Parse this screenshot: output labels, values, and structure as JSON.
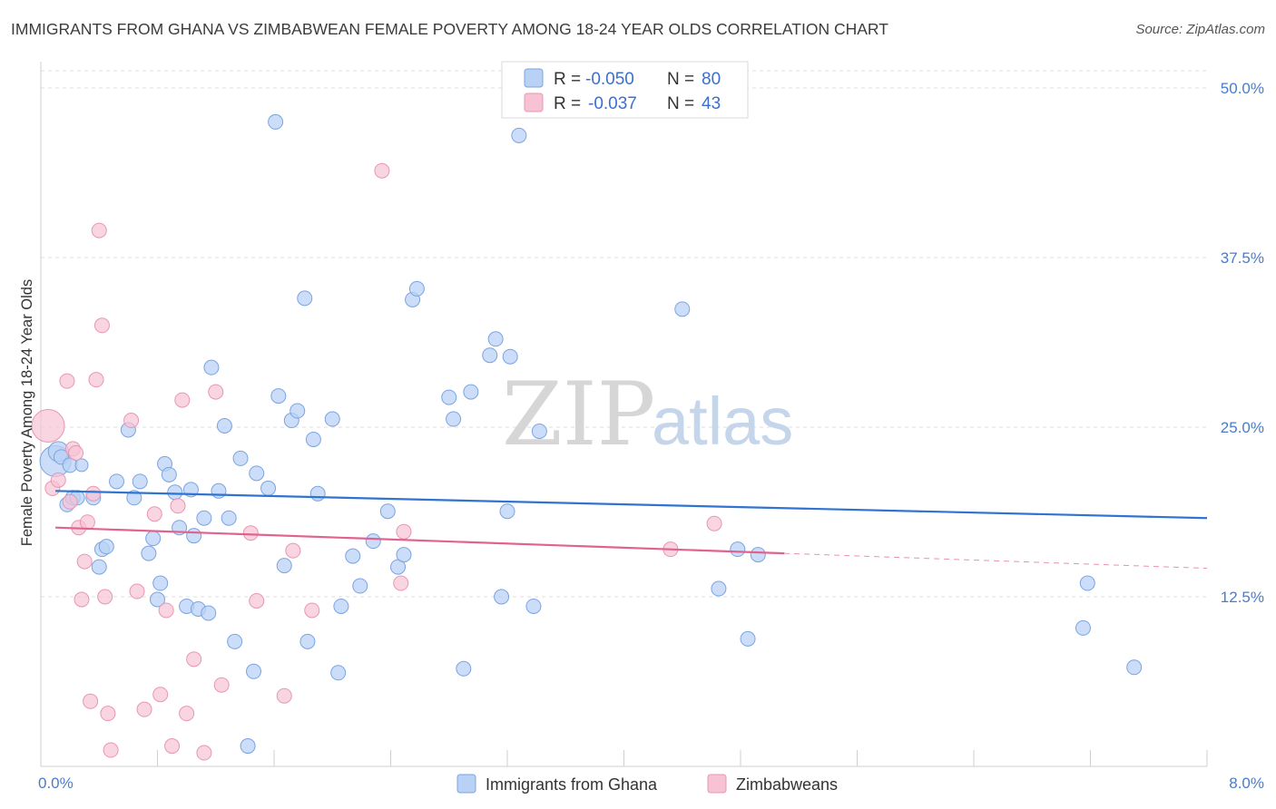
{
  "title": "IMMIGRANTS FROM GHANA VS ZIMBABWEAN FEMALE POVERTY AMONG 18-24 YEAR OLDS CORRELATION CHART",
  "source": "Source: ZipAtlas.com",
  "watermark": {
    "zip": "ZIP",
    "atlas": "atlas"
  },
  "colors": {
    "ghana_fill": "#b9d1f5",
    "ghana_stroke": "#7aa4e0",
    "ghana_line": "#2f74d0",
    "zim_fill": "#f7c3d4",
    "zim_stroke": "#e996b3",
    "zim_line": "#e0628f",
    "grid": "#dcdcdc",
    "tick_label": "#4a7ccc"
  },
  "legend": {
    "rows": [
      {
        "r_label": "R =",
        "r_value": "-0.050",
        "n_label": "N =",
        "n_value": "80"
      },
      {
        "r_label": "R =",
        "r_value": "-0.037",
        "n_label": "N =",
        "n_value": "43"
      }
    ]
  },
  "bottom_legend": [
    "Immigrants from Ghana",
    "Zimbabweans"
  ],
  "chart_data": {
    "type": "scatter",
    "title": "IMMIGRANTS FROM GHANA VS ZIMBABWEAN FEMALE POVERTY AMONG 18-24 YEAR OLDS CORRELATION CHART",
    "xlabel": "",
    "ylabel": "Female Poverty Among 18-24 Year Olds",
    "xlim": [
      0,
      8
    ],
    "ylim": [
      0,
      51
    ],
    "x_tick_labels": [
      {
        "value": 0,
        "label": "0.0%"
      },
      {
        "value": 8,
        "label": "8.0%"
      }
    ],
    "y_ticks": [
      {
        "value": 12.5,
        "label": "12.5%"
      },
      {
        "value": 25,
        "label": "25.0%"
      },
      {
        "value": 37.5,
        "label": "37.5%"
      },
      {
        "value": 50,
        "label": "50.0%"
      }
    ],
    "series": [
      {
        "name": "Immigrants from Ghana",
        "r": -0.05,
        "n": 80,
        "trend": {
          "x0": 0.1,
          "y0": 20.3,
          "x1": 8.0,
          "y1": 18.3,
          "dash_after": null
        },
        "points": [
          [
            0.1,
            22.5
          ],
          [
            0.12,
            23.2
          ],
          [
            0.14,
            22.8
          ],
          [
            0.18,
            19.3
          ],
          [
            0.2,
            22.2
          ],
          [
            0.22,
            19.8
          ],
          [
            0.25,
            19.8
          ],
          [
            0.28,
            22.2
          ],
          [
            0.36,
            19.8
          ],
          [
            0.4,
            14.7
          ],
          [
            0.42,
            16.0
          ],
          [
            0.45,
            16.2
          ],
          [
            0.52,
            21.0
          ],
          [
            0.6,
            24.8
          ],
          [
            0.64,
            19.8
          ],
          [
            0.68,
            21.0
          ],
          [
            0.74,
            15.7
          ],
          [
            0.77,
            16.8
          ],
          [
            0.8,
            12.3
          ],
          [
            0.82,
            13.5
          ],
          [
            0.85,
            22.3
          ],
          [
            0.88,
            21.5
          ],
          [
            0.92,
            20.2
          ],
          [
            0.95,
            17.6
          ],
          [
            1.0,
            11.8
          ],
          [
            1.03,
            20.4
          ],
          [
            1.05,
            17.0
          ],
          [
            1.08,
            11.6
          ],
          [
            1.12,
            18.3
          ],
          [
            1.15,
            11.3
          ],
          [
            1.17,
            29.4
          ],
          [
            1.22,
            20.3
          ],
          [
            1.26,
            25.1
          ],
          [
            1.29,
            18.3
          ],
          [
            1.33,
            9.2
          ],
          [
            1.37,
            22.7
          ],
          [
            1.42,
            1.5
          ],
          [
            1.46,
            7.0
          ],
          [
            1.48,
            21.6
          ],
          [
            1.56,
            20.5
          ],
          [
            1.61,
            47.5
          ],
          [
            1.63,
            27.3
          ],
          [
            1.67,
            14.8
          ],
          [
            1.72,
            25.5
          ],
          [
            1.76,
            26.2
          ],
          [
            1.81,
            34.5
          ],
          [
            1.83,
            9.2
          ],
          [
            1.87,
            24.1
          ],
          [
            1.9,
            20.1
          ],
          [
            2.0,
            25.6
          ],
          [
            2.04,
            6.9
          ],
          [
            2.06,
            11.8
          ],
          [
            2.14,
            15.5
          ],
          [
            2.19,
            13.3
          ],
          [
            2.28,
            16.6
          ],
          [
            2.38,
            18.8
          ],
          [
            2.45,
            14.7
          ],
          [
            2.49,
            15.6
          ],
          [
            2.55,
            34.4
          ],
          [
            2.58,
            35.2
          ],
          [
            2.8,
            27.2
          ],
          [
            2.83,
            25.6
          ],
          [
            2.9,
            7.2
          ],
          [
            2.95,
            27.6
          ],
          [
            3.08,
            30.3
          ],
          [
            3.12,
            31.5
          ],
          [
            3.16,
            12.5
          ],
          [
            3.2,
            18.8
          ],
          [
            3.22,
            30.2
          ],
          [
            3.28,
            46.5
          ],
          [
            3.38,
            11.8
          ],
          [
            3.42,
            24.7
          ],
          [
            4.4,
            33.7
          ],
          [
            4.65,
            13.1
          ],
          [
            4.78,
            16.0
          ],
          [
            4.85,
            9.4
          ],
          [
            4.92,
            15.6
          ],
          [
            7.15,
            10.2
          ],
          [
            7.18,
            13.5
          ],
          [
            7.5,
            7.3
          ]
        ],
        "sizes": {
          "0.1,22.5": 34,
          "0.12,23.2": 22,
          "0.14,22.8": 16,
          "0.28,22.2": 14
        }
      },
      {
        "name": "Zimbabweans",
        "r": -0.037,
        "n": 43,
        "trend": {
          "x0": 0.1,
          "y0": 17.6,
          "x1": 5.1,
          "y1": 15.7,
          "dash_to_x": 8.0,
          "dash_to_y": 14.6
        },
        "points": [
          [
            0.05,
            25.1
          ],
          [
            0.08,
            20.5
          ],
          [
            0.12,
            21.1
          ],
          [
            0.18,
            28.4
          ],
          [
            0.2,
            19.5
          ],
          [
            0.22,
            23.4
          ],
          [
            0.24,
            23.1
          ],
          [
            0.26,
            17.6
          ],
          [
            0.28,
            12.3
          ],
          [
            0.3,
            15.1
          ],
          [
            0.32,
            18.0
          ],
          [
            0.34,
            4.8
          ],
          [
            0.36,
            20.1
          ],
          [
            0.38,
            28.5
          ],
          [
            0.4,
            39.5
          ],
          [
            0.42,
            32.5
          ],
          [
            0.44,
            12.5
          ],
          [
            0.46,
            3.9
          ],
          [
            0.48,
            1.2
          ],
          [
            0.62,
            25.5
          ],
          [
            0.66,
            12.9
          ],
          [
            0.71,
            4.2
          ],
          [
            0.78,
            18.6
          ],
          [
            0.82,
            5.3
          ],
          [
            0.86,
            11.5
          ],
          [
            0.9,
            1.5
          ],
          [
            0.94,
            19.2
          ],
          [
            0.97,
            27.0
          ],
          [
            1.0,
            3.9
          ],
          [
            1.05,
            7.9
          ],
          [
            1.12,
            1.0
          ],
          [
            1.2,
            27.6
          ],
          [
            1.24,
            6.0
          ],
          [
            1.44,
            17.2
          ],
          [
            1.48,
            12.2
          ],
          [
            1.67,
            5.2
          ],
          [
            1.73,
            15.9
          ],
          [
            1.86,
            11.5
          ],
          [
            2.34,
            43.9
          ],
          [
            2.47,
            13.5
          ],
          [
            2.49,
            17.3
          ],
          [
            4.32,
            16.0
          ],
          [
            4.62,
            17.9
          ]
        ]
      }
    ],
    "grid": true,
    "legend_position": "top-center"
  }
}
